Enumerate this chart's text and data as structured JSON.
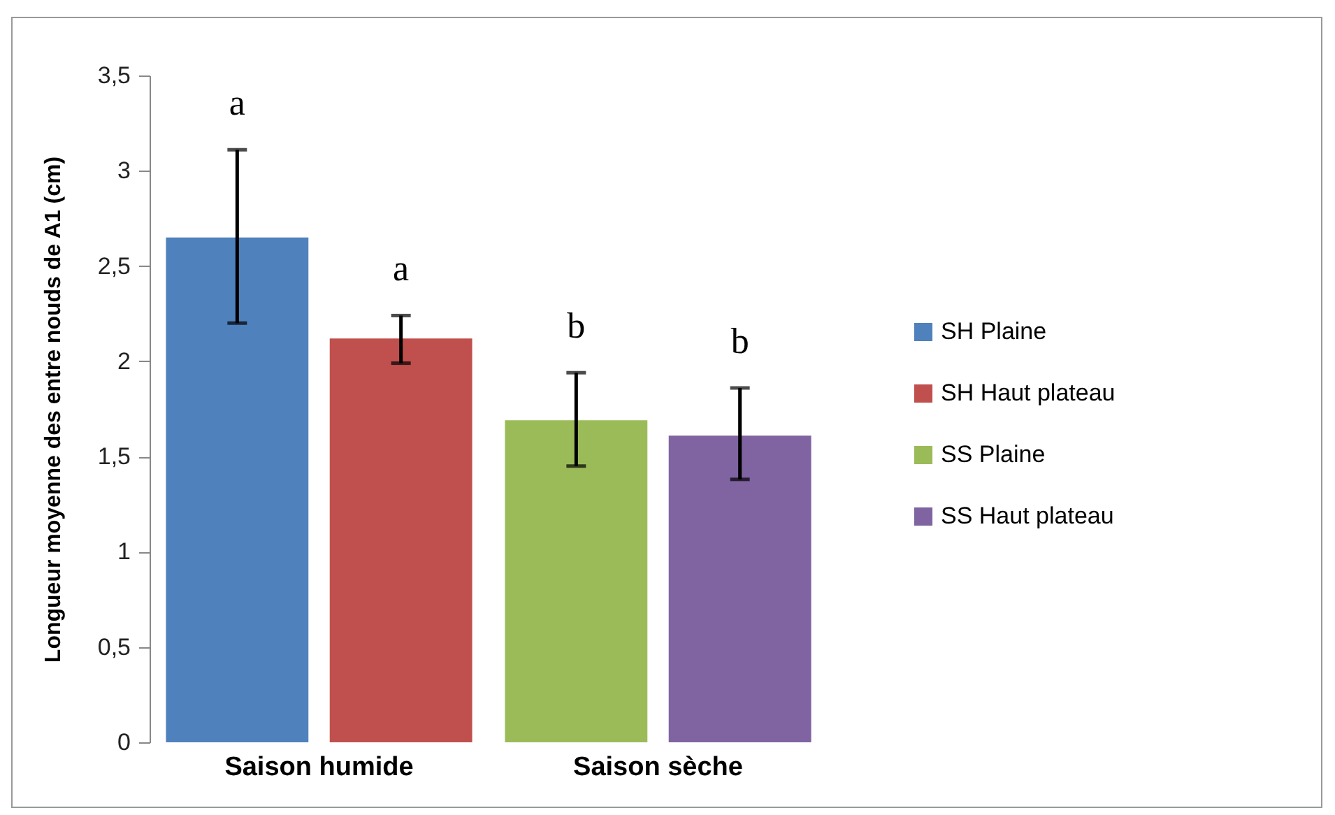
{
  "chart_data": {
    "type": "bar",
    "ylabel": "Longueur moyenne des entre nouds de A1 (cm)",
    "categories": [
      "Saison humide",
      "Saison sèche"
    ],
    "series": [
      {
        "name": "SH Plaine",
        "color": "#4f81bd",
        "values": [
          2.65,
          null
        ],
        "errors": [
          [
            2.2,
            3.11
          ],
          null
        ]
      },
      {
        "name": "SH Haut plateau",
        "color": "#c0504d",
        "values": [
          2.12,
          null
        ],
        "errors": [
          [
            1.99,
            2.24
          ],
          null
        ]
      },
      {
        "name": "SS Plaine",
        "color": "#9bbb59",
        "values": [
          null,
          1.69
        ],
        "errors": [
          null,
          [
            1.45,
            1.94
          ]
        ]
      },
      {
        "name": "SS Haut plateau",
        "color": "#8064a2",
        "values": [
          null,
          1.61
        ],
        "errors": [
          null,
          [
            1.38,
            1.86
          ]
        ]
      }
    ],
    "annotations": [
      "a",
      "a",
      "b",
      "b"
    ],
    "ylim": [
      0,
      3.5
    ],
    "yticks": [
      0,
      {
        "value": 0.5,
        "label": "0,5"
      },
      1,
      {
        "value": 1.5,
        "label": "1,5"
      },
      2,
      {
        "value": 2.5,
        "label": "2,5"
      },
      3,
      {
        "value": 3.5,
        "label": "3,5"
      }
    ],
    "grid": false,
    "legend": "right"
  }
}
